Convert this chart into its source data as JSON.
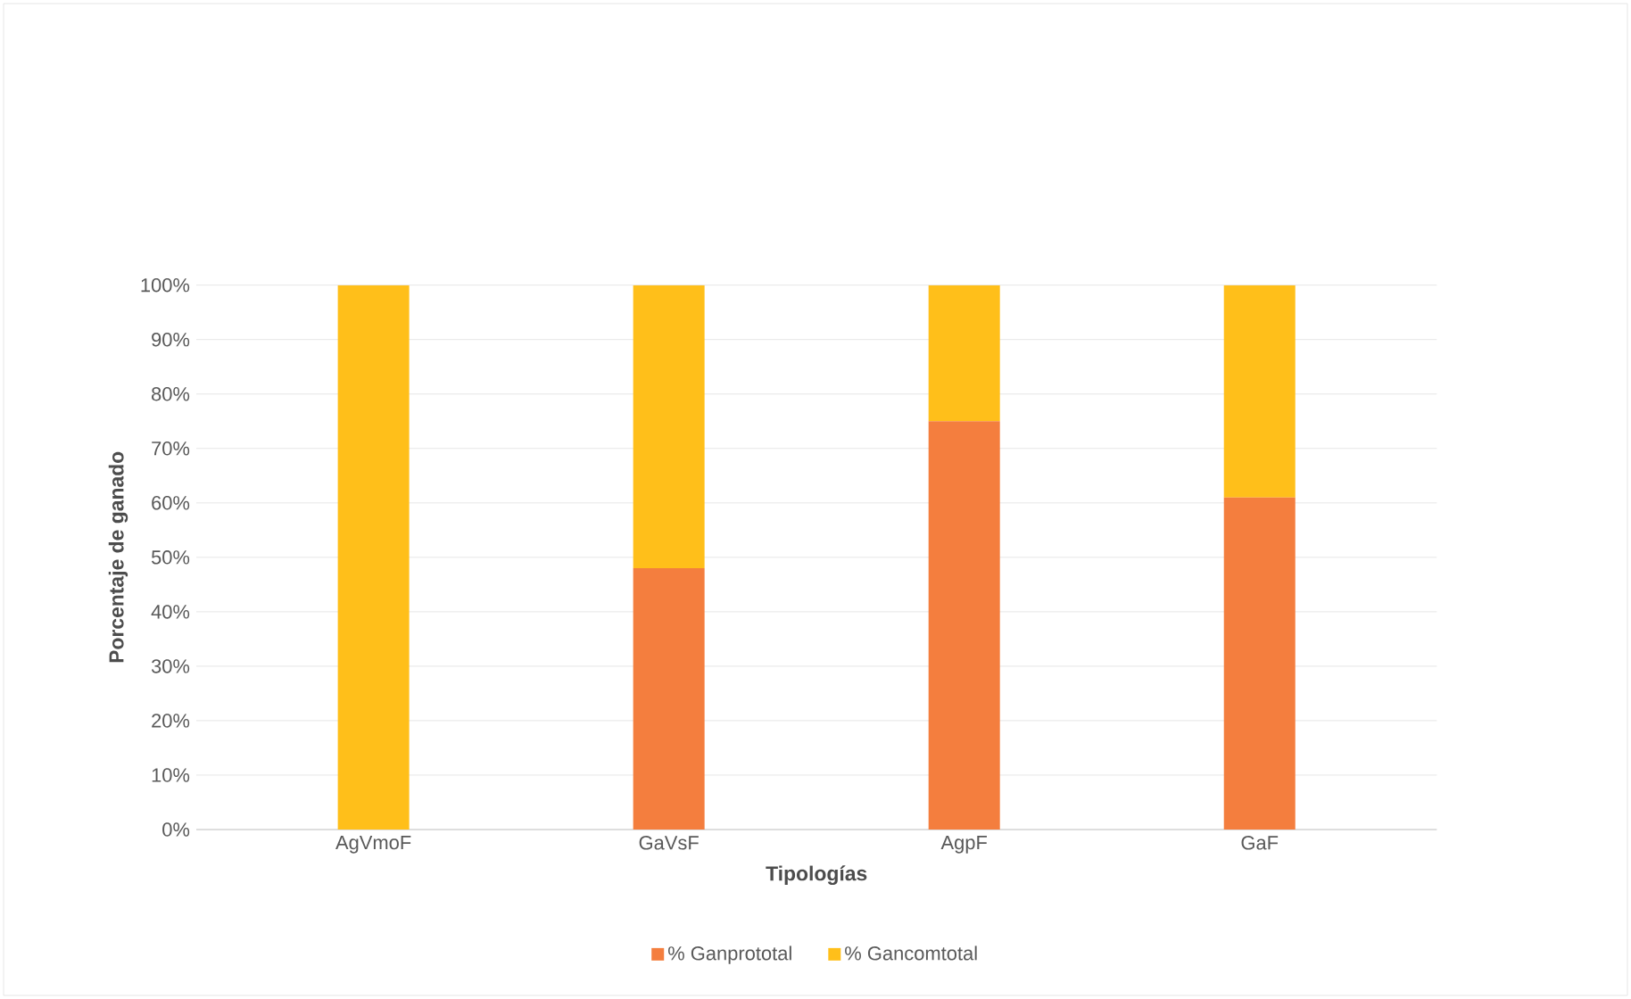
{
  "chart_data": {
    "type": "bar",
    "stacked": true,
    "xlabel": "Tipologías",
    "ylabel": "Porcentaje de ganado",
    "categories": [
      "AgVmoF",
      "GaVsF",
      "AgpF",
      "GaF"
    ],
    "series": [
      {
        "name": "% Ganprototal",
        "color": "#f47e3e",
        "values": [
          0,
          48,
          75,
          61
        ]
      },
      {
        "name": "% Gancomtotal",
        "color": "#ffbf1a",
        "values": [
          100,
          52,
          25,
          39
        ]
      }
    ],
    "ylim": [
      0,
      100
    ],
    "yticks": [
      {
        "value": 0,
        "label": "0%"
      },
      {
        "value": 10,
        "label": "10%"
      },
      {
        "value": 20,
        "label": "20%"
      },
      {
        "value": 30,
        "label": "30%"
      },
      {
        "value": 40,
        "label": "40%"
      },
      {
        "value": 50,
        "label": "50%"
      },
      {
        "value": 60,
        "label": "60%"
      },
      {
        "value": 70,
        "label": "70%"
      },
      {
        "value": 80,
        "label": "80%"
      },
      {
        "value": 90,
        "label": "90%"
      },
      {
        "value": 100,
        "label": "100%"
      }
    ],
    "grid": "y",
    "legend": "bottom"
  }
}
